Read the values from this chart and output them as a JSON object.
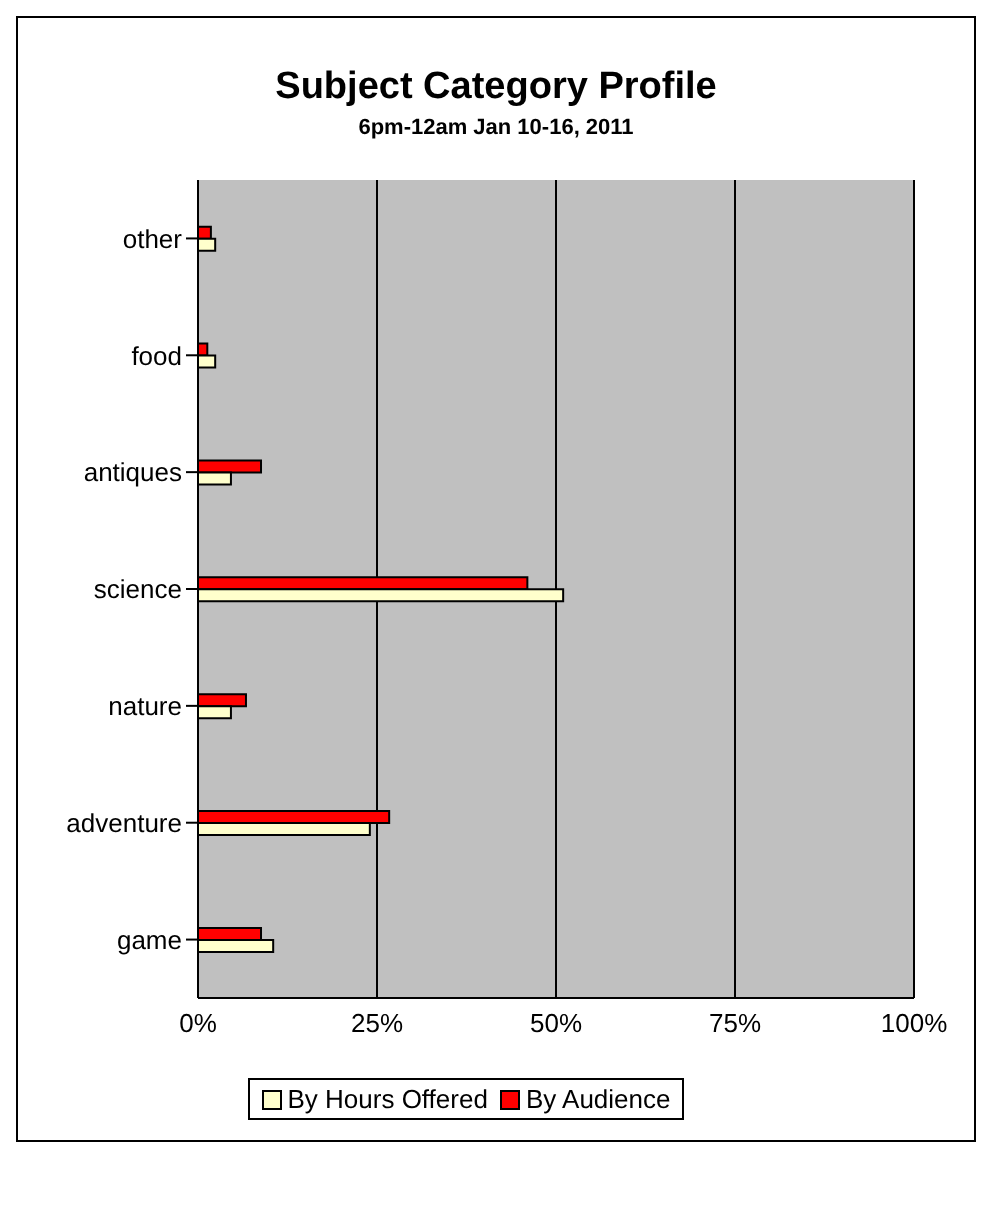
{
  "chart_data": {
    "type": "bar",
    "orientation": "horizontal",
    "title": "Subject Category Profile",
    "subtitle": "6pm-12am Jan 10-16, 2011",
    "categories": [
      "other",
      "food",
      "antiques",
      "science",
      "nature",
      "adventure",
      "game"
    ],
    "series": [
      {
        "name": "By Hours Offered",
        "color": "#ffffcc",
        "values": [
          2.4,
          2.4,
          4.6,
          51,
          4.6,
          24,
          10.5
        ]
      },
      {
        "name": "By Audience",
        "color": "#ff0000",
        "values": [
          1.8,
          1.3,
          8.8,
          46,
          6.7,
          26.7,
          8.8
        ]
      }
    ],
    "xlim": [
      0,
      100
    ],
    "xticks": [
      {
        "value": 0,
        "label": "0%"
      },
      {
        "value": 25,
        "label": "25%"
      },
      {
        "value": 50,
        "label": "50%"
      },
      {
        "value": 75,
        "label": "75%"
      },
      {
        "value": 100,
        "label": "100%"
      }
    ],
    "grid": "x",
    "legend": "bottom"
  }
}
